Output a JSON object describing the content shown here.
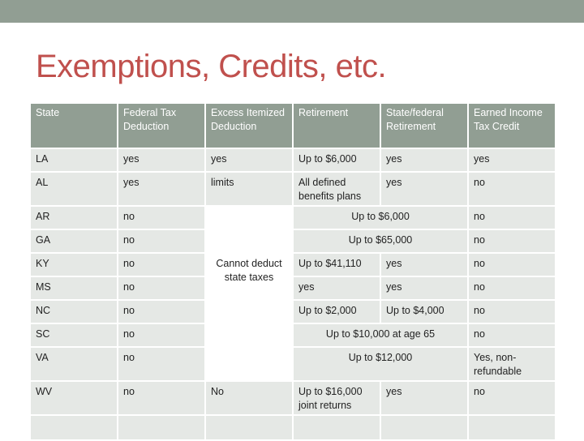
{
  "slide": {
    "title": "Exemptions, Credits, etc."
  },
  "table": {
    "headers": [
      "State",
      "Federal Tax Deduction",
      "Excess Itemized Deduction",
      "Retirement",
      "State/federal Retirement",
      "Earned Income Tax Credit"
    ],
    "rows": {
      "la": {
        "state": "LA",
        "federal": "yes",
        "excess": "yes",
        "retirement": "Up to $6,000",
        "statefed": "yes",
        "eitc": "yes"
      },
      "al": {
        "state": "AL",
        "federal": "yes",
        "excess": "limits",
        "retirement": "All defined benefits plans",
        "statefed": "yes",
        "eitc": "no"
      },
      "ar": {
        "state": "AR",
        "federal": "no",
        "retirement_merged": "Up to $6,000",
        "eitc": "no"
      },
      "ga": {
        "state": "GA",
        "federal": "no",
        "retirement_merged": "Up to $65,000",
        "eitc": "no"
      },
      "ky": {
        "state": "KY",
        "federal": "no",
        "retirement": "Up to $41,110",
        "statefed": "yes",
        "eitc": "no"
      },
      "ms": {
        "state": "MS",
        "federal": "no",
        "retirement": "yes",
        "statefed": "yes",
        "eitc": "no"
      },
      "nc": {
        "state": "NC",
        "federal": "no",
        "retirement": "Up to $2,000",
        "statefed": "Up to $4,000",
        "eitc": "no"
      },
      "sc": {
        "state": "SC",
        "federal": "no",
        "retirement_merged": "Up to $10,000 at age 65",
        "eitc": "no"
      },
      "va": {
        "state": "VA",
        "federal": "no",
        "retirement_merged": "Up to $12,000",
        "eitc": "Yes, non-refundable"
      },
      "wv": {
        "state": "WV",
        "federal": "no",
        "excess": "No",
        "retirement": "Up to $16,000 joint returns",
        "statefed": "yes",
        "eitc": "no"
      }
    },
    "excess_merged": "Cannot deduct state taxes"
  }
}
